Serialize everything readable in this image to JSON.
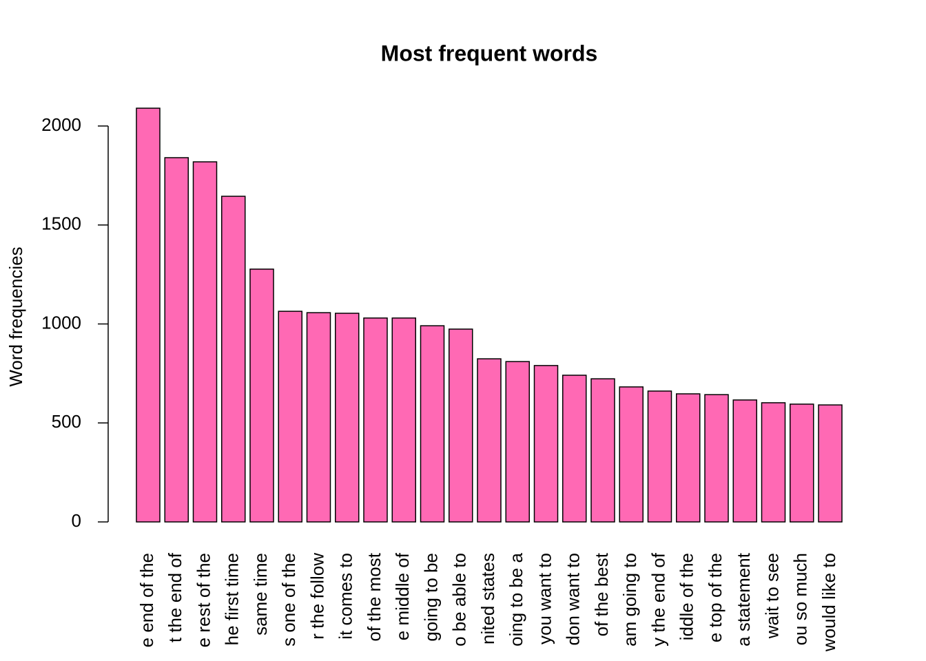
{
  "chart_data": {
    "type": "bar",
    "title": "Most frequent words",
    "y_label": "Word frequencies",
    "categories": [
      "e end of the",
      "t the end of",
      "e rest of the",
      "he first time",
      "same time",
      "s one of the",
      "r the follow",
      "it comes to",
      "of the most",
      "e middle of",
      "going to be",
      "o be able to",
      "nited states",
      "oing to be a",
      "you want to",
      "don want to",
      "of the best",
      "am going to",
      "y the end of",
      "iddle of the",
      "e top of the",
      "a statement",
      "wait to see",
      "ou so much",
      "would like to"
    ],
    "values": [
      2090,
      1840,
      1819,
      1645,
      1277,
      1064,
      1057,
      1054,
      1030,
      1030,
      991,
      974,
      824,
      810,
      790,
      741,
      723,
      682,
      661,
      647,
      643,
      616,
      602,
      595,
      591
    ],
    "color": "#ff69b4",
    "ylim": [
      0,
      2000
    ],
    "yticks": [
      0,
      500,
      1000,
      1500,
      2000
    ],
    "grid": false
  }
}
